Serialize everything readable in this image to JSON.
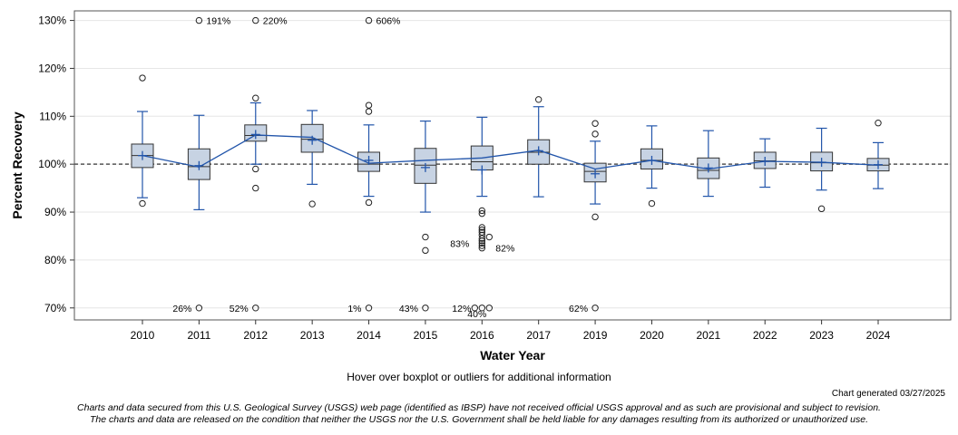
{
  "chart_data": {
    "type": "boxplot",
    "xlabel": "Water Year",
    "ylabel": "Percent Recovery",
    "ylim": [
      67.5,
      132
    ],
    "y_ticks": [
      70,
      80,
      90,
      100,
      110,
      120,
      130
    ],
    "y_tick_labels": [
      "70%",
      "80%",
      "90%",
      "100%",
      "110%",
      "120%",
      "130%"
    ],
    "reference_line": 100,
    "off_scale_high_value": 130,
    "off_scale_low_value": 70,
    "categories": [
      "2010",
      "2011",
      "2012",
      "2013",
      "2014",
      "2015",
      "2016",
      "2017",
      "2019",
      "2020",
      "2021",
      "2022",
      "2023",
      "2024"
    ],
    "boxes": [
      {
        "year": "2010",
        "whisker_low": 93,
        "q1": 99.3,
        "median": 101.8,
        "q3": 104.2,
        "whisker_high": 111,
        "mean": 101.8,
        "mean_line": 101.8,
        "outliers": [
          118,
          91.8
        ],
        "off_high": [],
        "off_low": []
      },
      {
        "year": "2011",
        "whisker_low": 90.5,
        "q1": 96.8,
        "median": 99.5,
        "q3": 103.2,
        "whisker_high": 110.2,
        "mean": 99.7,
        "mean_line": 99.4,
        "outliers": [],
        "off_high": [
          "191%"
        ],
        "off_low": [
          "26%"
        ]
      },
      {
        "year": "2012",
        "whisker_low": 100,
        "q1": 104.8,
        "median": 106,
        "q3": 108.2,
        "whisker_high": 112.8,
        "mean": 106.2,
        "mean_line": 106.1,
        "outliers": [
          113.8,
          99,
          95
        ],
        "off_high": [
          "220%"
        ],
        "off_low": [
          "52%"
        ]
      },
      {
        "year": "2013",
        "whisker_low": 95.8,
        "q1": 102.5,
        "median": 105.2,
        "q3": 108.3,
        "whisker_high": 111.2,
        "mean": 105.0,
        "mean_line": 105.6,
        "outliers": [
          91.7
        ],
        "off_high": [],
        "off_low": []
      },
      {
        "year": "2014",
        "whisker_low": 93.3,
        "q1": 98.5,
        "median": 100,
        "q3": 102.5,
        "whisker_high": 108.2,
        "mean": 100.8,
        "mean_line": 100.2,
        "outliers": [
          112.3,
          111,
          92
        ],
        "off_high": [
          "606%"
        ],
        "off_low": [
          "1%"
        ]
      },
      {
        "year": "2015",
        "whisker_low": 90,
        "q1": 96,
        "median": 99.8,
        "q3": 103.3,
        "whisker_high": 109,
        "mean": 99.3,
        "mean_line": 100.8,
        "outliers": [
          84.8,
          82
        ],
        "off_high": [],
        "off_low": [
          "43%"
        ]
      },
      {
        "year": "2016",
        "whisker_low": 93.3,
        "q1": 98.8,
        "median": 100.5,
        "q3": 103.8,
        "whisker_high": 109.8,
        "mean": 98.8,
        "mean_line": 101.3,
        "outliers": [
          90.3,
          89.7,
          86.8,
          86.3,
          85.8,
          85.2,
          84.5,
          84.0,
          83.5,
          83.0,
          82.5
        ],
        "off_high": [],
        "off_low": [
          "12%",
          "40%"
        ],
        "annotations": [
          "83%",
          "82%"
        ]
      },
      {
        "year": "2017",
        "whisker_low": 93.2,
        "q1": 100,
        "median": 102.5,
        "q3": 105.1,
        "whisker_high": 112,
        "mean": 102.8,
        "mean_line": 102.9,
        "outliers": [
          113.5
        ],
        "off_high": [],
        "off_low": []
      },
      {
        "year": "2019",
        "whisker_low": 91.7,
        "q1": 96.3,
        "median": 98.5,
        "q3": 100.2,
        "whisker_high": 104.8,
        "mean": 98.0,
        "mean_line": 99.0,
        "outliers": [
          108.5,
          106.3,
          89
        ],
        "off_high": [],
        "off_low": [
          "62%"
        ]
      },
      {
        "year": "2020",
        "whisker_low": 95,
        "q1": 99,
        "median": 100.8,
        "q3": 103.2,
        "whisker_high": 108,
        "mean": 100.8,
        "mean_line": 100.8,
        "outliers": [
          91.8
        ],
        "off_high": [],
        "off_low": []
      },
      {
        "year": "2021",
        "whisker_low": 93.3,
        "q1": 97,
        "median": 98.7,
        "q3": 101.3,
        "whisker_high": 107,
        "mean": 99.2,
        "mean_line": 99.0,
        "outliers": [],
        "off_high": [],
        "off_low": []
      },
      {
        "year": "2022",
        "whisker_low": 95.2,
        "q1": 99.1,
        "median": 100.7,
        "q3": 102.5,
        "whisker_high": 105.3,
        "mean": 100.6,
        "mean_line": 100.6,
        "outliers": [],
        "off_high": [],
        "off_low": []
      },
      {
        "year": "2023",
        "whisker_low": 94.6,
        "q1": 98.6,
        "median": 100.3,
        "q3": 102.5,
        "whisker_high": 107.5,
        "mean": 100.4,
        "mean_line": 100.4,
        "outliers": [
          90.7
        ],
        "off_high": [],
        "off_low": []
      },
      {
        "year": "2024",
        "whisker_low": 94.9,
        "q1": 98.6,
        "median": 99.8,
        "q3": 101.2,
        "whisker_high": 104.5,
        "mean": 99.9,
        "mean_line": 99.8,
        "outliers": [
          108.6
        ],
        "off_high": [],
        "off_low": []
      }
    ]
  },
  "colors": {
    "box_fill": "#c7d3e3",
    "box_stroke": "#333333",
    "whisker": "#2255aa",
    "mean_line": "#2255aa",
    "ref_line": "#555555",
    "grid": "#e6e6e6"
  },
  "footer": {
    "hover_note": "Hover over boxplot or outliers for additional information",
    "generated": "Chart generated 03/27/2025",
    "disclaimer_1": "Charts and data secured from this U.S. Geological Survey (USGS) web page (identified as IBSP) have not received official USGS approval and as such are provisional and subject to revision.",
    "disclaimer_2": "The charts and data are released on the condition that neither the USGS nor the U.S. Government shall be held liable for any damages resulting from its authorized or unauthorized use."
  }
}
